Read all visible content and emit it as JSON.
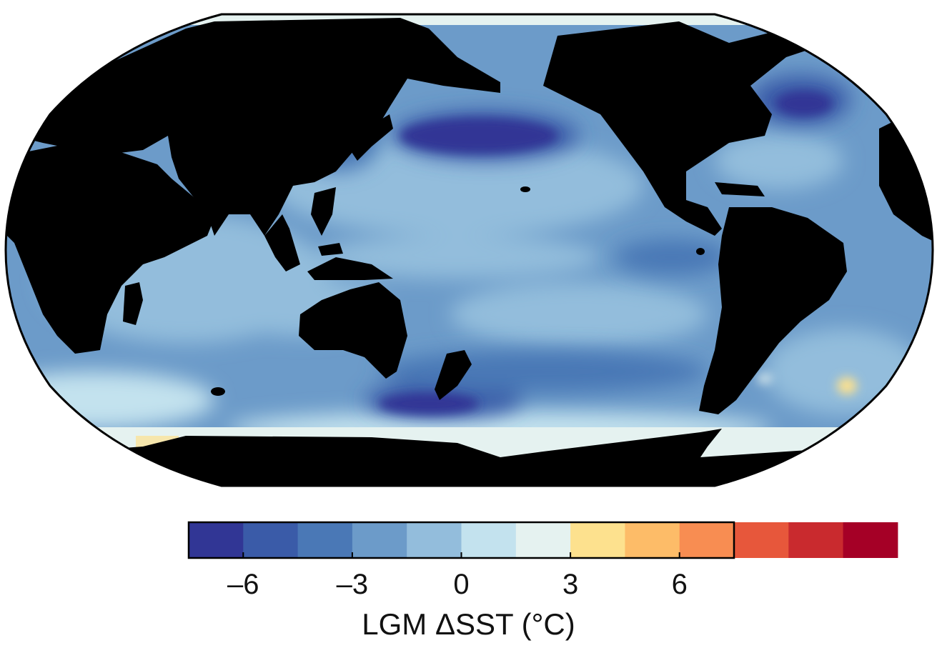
{
  "map": {
    "projection": "Robinson",
    "central_longitude": "180",
    "land_color": "#000000",
    "outline_color": "#000000"
  },
  "colorbar": {
    "label": "LGM ΔSST (°C)",
    "vmin": -7.5,
    "vmax": 7.5,
    "step": 1.5,
    "ticks": [
      {
        "value": -6,
        "label": "–6"
      },
      {
        "value": -3,
        "label": "–3"
      },
      {
        "value": 0,
        "label": "0"
      },
      {
        "value": 3,
        "label": "3"
      },
      {
        "value": 6,
        "label": "6"
      }
    ],
    "colors": [
      "#313695",
      "#3a5ba8",
      "#4a78b6",
      "#6c9bc9",
      "#93bddc",
      "#c3e2ee",
      "#e5f2f0",
      "#fde18e",
      "#fdbc68",
      "#f88d52",
      "#e7573b",
      "#c92a2e",
      "#a50026"
    ]
  }
}
